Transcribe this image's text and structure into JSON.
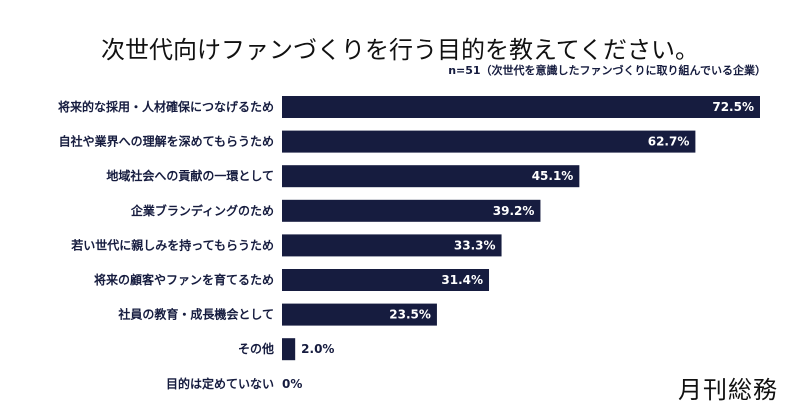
{
  "chart_data": {
    "type": "bar",
    "orientation": "horizontal",
    "title": "次世代向けファンづくりを行う目的を教えてください。",
    "subtitle": "n=51（次世代を意識したファンづくりに取り組んでいる企業）",
    "categories": [
      "将来的な採用・人材確保につなげるため",
      "自社や業界への理解を深めてもらうため",
      "地域社会への貢献の一環として",
      "企業ブランディングのため",
      "若い世代に親しみを持ってもらうため",
      "将来の顧客やファンを育てるため",
      "社員の教育・成長機会として",
      "その他",
      "目的は定めていない"
    ],
    "values": [
      72.5,
      62.7,
      45.1,
      39.2,
      33.3,
      31.4,
      23.5,
      2.0,
      0
    ],
    "labels": [
      "72.5%",
      "62.7%",
      "45.1%",
      "39.2%",
      "33.3%",
      "31.4%",
      "23.5%",
      "2.0%",
      "0%"
    ],
    "unit": "%",
    "grid": false,
    "bar_color": "#161c3f"
  },
  "logo": "月刊総務"
}
